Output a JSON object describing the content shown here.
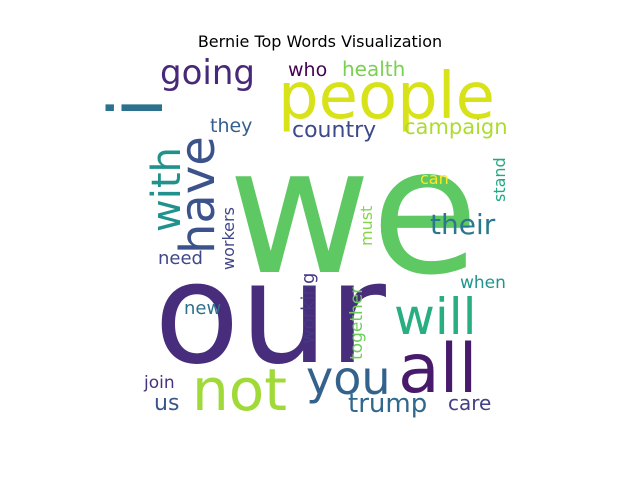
{
  "chart_data": {
    "type": "wordcloud",
    "title": "Bernie Top Words Visualization",
    "words": [
      {
        "text": "we",
        "color": "#5ec962"
      },
      {
        "text": "our",
        "color": "#472d7b"
      },
      {
        "text": "people",
        "color": "#d8e219"
      },
      {
        "text": "i",
        "color": "#2c728e"
      },
      {
        "text": "not",
        "color": "#a0da39"
      },
      {
        "text": "all",
        "color": "#481a6c"
      },
      {
        "text": "you",
        "color": "#33638d"
      },
      {
        "text": "will",
        "color": "#28ae80"
      },
      {
        "text": "have",
        "color": "#3b528b"
      },
      {
        "text": "with",
        "color": "#21918c"
      },
      {
        "text": "going",
        "color": "#482878"
      },
      {
        "text": "country",
        "color": "#3e4989"
      },
      {
        "text": "trump",
        "color": "#31688e"
      },
      {
        "text": "their",
        "color": "#2a788e"
      },
      {
        "text": "campaign",
        "color": "#addc30"
      },
      {
        "text": "health",
        "color": "#7ad151"
      },
      {
        "text": "who",
        "color": "#440154"
      },
      {
        "text": "they",
        "color": "#355f8d"
      },
      {
        "text": "us",
        "color": "#39568c"
      },
      {
        "text": "care",
        "color": "#424086"
      },
      {
        "text": "need",
        "color": "#3f4788"
      },
      {
        "text": "workers",
        "color": "#414487"
      },
      {
        "text": "working",
        "color": "#443a83"
      },
      {
        "text": "together",
        "color": "#6ccd5a"
      },
      {
        "text": "must",
        "color": "#86d549"
      },
      {
        "text": "stand",
        "color": "#22a884"
      },
      {
        "text": "can",
        "color": "#fde725"
      },
      {
        "text": "when",
        "color": "#1f968b"
      },
      {
        "text": "new",
        "color": "#2d708e"
      },
      {
        "text": "join",
        "color": "#46337e"
      }
    ]
  }
}
